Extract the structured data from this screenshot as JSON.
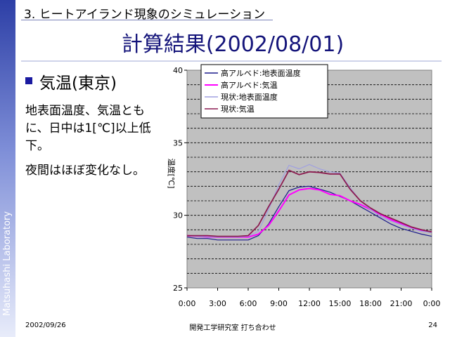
{
  "sidebar": {
    "label": "Matsuhashi Laboratory"
  },
  "section_title": "3. ヒートアイランド現象のシミュレーション",
  "main_title": "計算結果(2002/08/01)",
  "bullet_heading": "気温(東京)",
  "body": {
    "para1": "地表面温度、気温ともに、日中は1[℃]以上低下。",
    "para2": "夜間はほぼ変化なし。"
  },
  "footer": {
    "date": "2002/09/26",
    "center": "開発工学研究室 打ち合わせ",
    "page": "24"
  },
  "chart_data": {
    "type": "line",
    "title": "",
    "xlabel": "",
    "ylabel": "温度[℃]",
    "ylim": [
      25,
      40
    ],
    "yticks": [
      "25",
      "30",
      "35",
      "40"
    ],
    "x": [
      "0:00",
      "1:00",
      "2:00",
      "3:00",
      "4:00",
      "5:00",
      "6:00",
      "7:00",
      "8:00",
      "9:00",
      "10:00",
      "11:00",
      "12:00",
      "13:00",
      "14:00",
      "15:00",
      "16:00",
      "17:00",
      "18:00",
      "19:00",
      "20:00",
      "21:00",
      "22:00",
      "23:00",
      "0:00"
    ],
    "xtick_labels": [
      "0:00",
      "3:00",
      "6:00",
      "9:00",
      "12:00",
      "15:00",
      "18:00",
      "21:00",
      "0:00"
    ],
    "grid": "horizontal dashed",
    "legend": "top-left",
    "plot_bg": "#c0c0c0",
    "series": [
      {
        "name": "高アルベド:地表面温度",
        "color": "#1c1c8c",
        "values": [
          28.5,
          28.4,
          28.4,
          28.3,
          28.3,
          28.3,
          28.3,
          28.6,
          29.4,
          30.6,
          31.7,
          31.95,
          32.0,
          31.8,
          31.6,
          31.3,
          31.0,
          30.6,
          30.2,
          29.8,
          29.4,
          29.1,
          28.9,
          28.7,
          28.55
        ]
      },
      {
        "name": "高アルベド:気温",
        "color": "#ff00ff",
        "values": [
          28.6,
          28.55,
          28.5,
          28.5,
          28.5,
          28.5,
          28.5,
          28.7,
          29.3,
          30.3,
          31.4,
          31.75,
          31.85,
          31.75,
          31.45,
          31.35,
          31.0,
          30.75,
          30.4,
          30.05,
          29.7,
          29.4,
          29.15,
          28.95,
          28.85
        ]
      },
      {
        "name": "現状:地表面温度",
        "color": "#a0a0e0",
        "values": [
          28.6,
          28.55,
          28.5,
          28.5,
          28.5,
          28.5,
          28.55,
          28.9,
          30.4,
          32.1,
          33.45,
          33.2,
          33.5,
          33.2,
          33.0,
          32.9,
          31.9,
          31.0,
          30.4,
          29.9,
          29.6,
          29.35,
          29.1,
          28.9,
          28.8
        ]
      },
      {
        "name": "現状:気温",
        "color": "#8c1c50",
        "values": [
          28.6,
          28.6,
          28.6,
          28.55,
          28.55,
          28.55,
          28.6,
          29.3,
          30.6,
          31.8,
          33.1,
          32.8,
          33.0,
          32.95,
          32.85,
          32.85,
          31.8,
          31.0,
          30.5,
          30.1,
          29.8,
          29.5,
          29.2,
          29.0,
          28.85
        ]
      }
    ]
  }
}
